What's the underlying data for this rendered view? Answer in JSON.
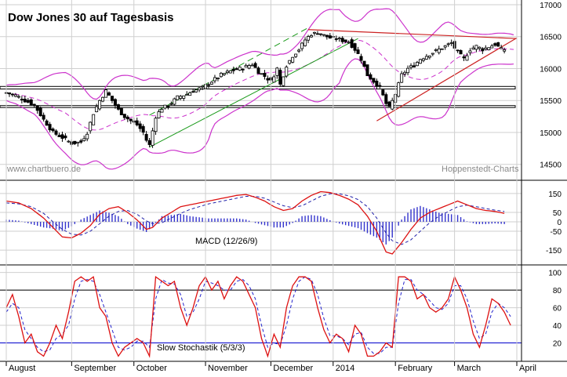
{
  "title": "Dow Jones 30 auf Tagesbasis",
  "watermark_left": "www.chartbuero.de",
  "watermark_right": "Hoppenstedt-Charts",
  "colors": {
    "candle": "#000000",
    "bollinger": "#cc33cc",
    "bollinger_mid": "#cc33cc",
    "channel_green": "#1a9a1a",
    "trend_red": "#cc2222",
    "support_box": "#000000",
    "macd_line": "#dd1111",
    "signal_line": "#2222aa",
    "histogram": "#3333cc",
    "stoch_k": "#dd1111",
    "stoch_d": "#2222cc",
    "stoch_upper": "#000000",
    "stoch_lower": "#0000cc",
    "grid": "#cfcfcf"
  },
  "chart_data": [
    {
      "type": "candlestick",
      "title": "Dow Jones 30 auf Tagesbasis",
      "y_ticks": [
        14500,
        15000,
        15500,
        16000,
        16500,
        17000
      ],
      "ylim": [
        14300,
        17000
      ],
      "grid": true,
      "x_labels": [
        "August",
        "September",
        "October",
        "November",
        "December",
        "2014",
        "February",
        "March",
        "April"
      ],
      "x_label_positions": [
        0,
        21,
        41,
        64,
        85,
        105,
        125,
        144,
        164
      ],
      "n_bars": 164,
      "close_anchors": [
        [
          0,
          15620
        ],
        [
          3,
          15580
        ],
        [
          6,
          15500
        ],
        [
          9,
          15430
        ],
        [
          12,
          15200
        ],
        [
          15,
          15000
        ],
        [
          18,
          14920
        ],
        [
          21,
          14830
        ],
        [
          24,
          14850
        ],
        [
          26,
          15000
        ],
        [
          28,
          15300
        ],
        [
          30,
          15500
        ],
        [
          32,
          15650
        ],
        [
          34,
          15500
        ],
        [
          36,
          15350
        ],
        [
          38,
          15250
        ],
        [
          40,
          15180
        ],
        [
          42,
          15120
        ],
        [
          44,
          15000
        ],
        [
          45,
          14880
        ],
        [
          46,
          14800
        ],
        [
          48,
          15250
        ],
        [
          50,
          15380
        ],
        [
          52,
          15420
        ],
        [
          55,
          15550
        ],
        [
          58,
          15600
        ],
        [
          60,
          15650
        ],
        [
          63,
          15700
        ],
        [
          66,
          15800
        ],
        [
          69,
          15900
        ],
        [
          72,
          15960
        ],
        [
          75,
          16000
        ],
        [
          77,
          16030
        ],
        [
          79,
          16070
        ],
        [
          81,
          15950
        ],
        [
          83,
          15880
        ],
        [
          85,
          15800
        ],
        [
          87,
          16000
        ],
        [
          88,
          15750
        ],
        [
          90,
          16050
        ],
        [
          92,
          16200
        ],
        [
          94,
          16300
        ],
        [
          96,
          16450
        ],
        [
          98,
          16540
        ],
        [
          100,
          16560
        ],
        [
          102,
          16520
        ],
        [
          104,
          16480
        ],
        [
          106,
          16470
        ],
        [
          108,
          16440
        ],
        [
          110,
          16420
        ],
        [
          112,
          16300
        ],
        [
          114,
          16150
        ],
        [
          116,
          15900
        ],
        [
          118,
          15800
        ],
        [
          120,
          15700
        ],
        [
          122,
          15450
        ],
        [
          123,
          15380
        ],
        [
          125,
          15600
        ],
        [
          127,
          15900
        ],
        [
          129,
          16000
        ],
        [
          131,
          16050
        ],
        [
          133,
          16150
        ],
        [
          135,
          16200
        ],
        [
          137,
          16250
        ],
        [
          139,
          16300
        ],
        [
          141,
          16350
        ],
        [
          143,
          16400
        ],
        [
          145,
          16250
        ],
        [
          147,
          16150
        ],
        [
          149,
          16300
        ],
        [
          151,
          16350
        ],
        [
          153,
          16300
        ],
        [
          155,
          16340
        ],
        [
          157,
          16380
        ],
        [
          159,
          16300
        ]
      ],
      "support_zone": [
        15680,
        15720
      ],
      "support_zone2": [
        15390,
        15420
      ],
      "channel": {
        "lower_from": [
          46,
          14770
        ],
        "lower_to": [
          113,
          16470
        ],
        "upper_from": [
          46,
          15270
        ],
        "upper_to": [
          97,
          16640
        ]
      },
      "resistance": {
        "from": [
          97,
          16610
        ],
        "to": [
          164,
          16470
        ]
      },
      "support_line": {
        "from": [
          119,
          15180
        ],
        "to": [
          164,
          16480
        ]
      }
    },
    {
      "type": "line",
      "name": "MACD (12/26/9)",
      "y_ticks": [
        150,
        50,
        0,
        -50,
        -150
      ],
      "ylim": [
        -220,
        220
      ],
      "macd_anchors": [
        [
          0,
          110
        ],
        [
          4,
          100
        ],
        [
          8,
          70
        ],
        [
          12,
          20
        ],
        [
          15,
          -30
        ],
        [
          18,
          -80
        ],
        [
          21,
          -85
        ],
        [
          24,
          -60
        ],
        [
          27,
          -20
        ],
        [
          30,
          40
        ],
        [
          33,
          70
        ],
        [
          36,
          80
        ],
        [
          39,
          50
        ],
        [
          42,
          10
        ],
        [
          45,
          -40
        ],
        [
          47,
          -30
        ],
        [
          50,
          20
        ],
        [
          53,
          50
        ],
        [
          56,
          80
        ],
        [
          59,
          90
        ],
        [
          62,
          100
        ],
        [
          65,
          110
        ],
        [
          68,
          120
        ],
        [
          71,
          130
        ],
        [
          74,
          140
        ],
        [
          77,
          145
        ],
        [
          80,
          130
        ],
        [
          83,
          110
        ],
        [
          86,
          80
        ],
        [
          89,
          60
        ],
        [
          92,
          70
        ],
        [
          95,
          110
        ],
        [
          98,
          140
        ],
        [
          101,
          160
        ],
        [
          104,
          155
        ],
        [
          107,
          140
        ],
        [
          110,
          120
        ],
        [
          113,
          90
        ],
        [
          116,
          30
        ],
        [
          119,
          -50
        ],
        [
          122,
          -160
        ],
        [
          124,
          -170
        ],
        [
          127,
          -110
        ],
        [
          130,
          -40
        ],
        [
          133,
          20
        ],
        [
          136,
          50
        ],
        [
          139,
          70
        ],
        [
          142,
          90
        ],
        [
          145,
          110
        ],
        [
          148,
          90
        ],
        [
          151,
          70
        ],
        [
          154,
          60
        ],
        [
          157,
          55
        ],
        [
          160,
          45
        ]
      ],
      "signal_anchors": [
        [
          0,
          100
        ],
        [
          4,
          95
        ],
        [
          8,
          80
        ],
        [
          12,
          45
        ],
        [
          15,
          0
        ],
        [
          18,
          -40
        ],
        [
          21,
          -65
        ],
        [
          24,
          -70
        ],
        [
          27,
          -50
        ],
        [
          30,
          -10
        ],
        [
          33,
          30
        ],
        [
          36,
          55
        ],
        [
          39,
          60
        ],
        [
          42,
          40
        ],
        [
          45,
          5
        ],
        [
          47,
          -10
        ],
        [
          50,
          -5
        ],
        [
          53,
          20
        ],
        [
          56,
          45
        ],
        [
          59,
          65
        ],
        [
          62,
          80
        ],
        [
          65,
          95
        ],
        [
          68,
          105
        ],
        [
          71,
          115
        ],
        [
          74,
          125
        ],
        [
          77,
          135
        ],
        [
          80,
          135
        ],
        [
          83,
          125
        ],
        [
          86,
          105
        ],
        [
          89,
          85
        ],
        [
          92,
          75
        ],
        [
          95,
          85
        ],
        [
          98,
          110
        ],
        [
          101,
          135
        ],
        [
          104,
          148
        ],
        [
          107,
          148
        ],
        [
          110,
          138
        ],
        [
          113,
          118
        ],
        [
          116,
          80
        ],
        [
          119,
          20
        ],
        [
          122,
          -60
        ],
        [
          124,
          -100
        ],
        [
          127,
          -120
        ],
        [
          130,
          -95
        ],
        [
          133,
          -50
        ],
        [
          136,
          -5
        ],
        [
          139,
          30
        ],
        [
          142,
          55
        ],
        [
          145,
          80
        ],
        [
          148,
          88
        ],
        [
          151,
          80
        ],
        [
          154,
          70
        ],
        [
          157,
          62
        ],
        [
          160,
          55
        ]
      ]
    },
    {
      "type": "line",
      "name": "Slow Stochastik (5/3/3)",
      "y_ticks": [
        100,
        80,
        60,
        40,
        20
      ],
      "ylim": [
        0,
        105
      ],
      "upper_level": 80,
      "lower_level": 20,
      "k_anchors": [
        [
          0,
          60
        ],
        [
          2,
          75
        ],
        [
          4,
          50
        ],
        [
          6,
          20
        ],
        [
          8,
          30
        ],
        [
          10,
          10
        ],
        [
          12,
          5
        ],
        [
          14,
          20
        ],
        [
          16,
          40
        ],
        [
          18,
          25
        ],
        [
          20,
          55
        ],
        [
          22,
          90
        ],
        [
          24,
          95
        ],
        [
          26,
          90
        ],
        [
          28,
          95
        ],
        [
          30,
          60
        ],
        [
          32,
          50
        ],
        [
          34,
          20
        ],
        [
          36,
          5
        ],
        [
          38,
          15
        ],
        [
          40,
          20
        ],
        [
          42,
          25
        ],
        [
          44,
          20
        ],
        [
          46,
          5
        ],
        [
          48,
          95
        ],
        [
          50,
          90
        ],
        [
          52,
          85
        ],
        [
          54,
          90
        ],
        [
          56,
          60
        ],
        [
          58,
          40
        ],
        [
          60,
          60
        ],
        [
          62,
          85
        ],
        [
          64,
          95
        ],
        [
          66,
          80
        ],
        [
          68,
          90
        ],
        [
          70,
          70
        ],
        [
          72,
          85
        ],
        [
          74,
          95
        ],
        [
          76,
          90
        ],
        [
          78,
          75
        ],
        [
          80,
          60
        ],
        [
          82,
          25
        ],
        [
          84,
          5
        ],
        [
          86,
          30
        ],
        [
          88,
          15
        ],
        [
          90,
          60
        ],
        [
          92,
          85
        ],
        [
          94,
          95
        ],
        [
          96,
          95
        ],
        [
          98,
          90
        ],
        [
          100,
          60
        ],
        [
          102,
          35
        ],
        [
          104,
          20
        ],
        [
          106,
          30
        ],
        [
          108,
          25
        ],
        [
          110,
          10
        ],
        [
          112,
          40
        ],
        [
          114,
          30
        ],
        [
          116,
          5
        ],
        [
          118,
          5
        ],
        [
          120,
          10
        ],
        [
          122,
          20
        ],
        [
          124,
          15
        ],
        [
          126,
          95
        ],
        [
          128,
          95
        ],
        [
          130,
          90
        ],
        [
          132,
          70
        ],
        [
          134,
          75
        ],
        [
          136,
          60
        ],
        [
          138,
          55
        ],
        [
          140,
          60
        ],
        [
          142,
          70
        ],
        [
          144,
          95
        ],
        [
          146,
          80
        ],
        [
          148,
          60
        ],
        [
          150,
          30
        ],
        [
          152,
          15
        ],
        [
          154,
          40
        ],
        [
          156,
          70
        ],
        [
          158,
          65
        ],
        [
          160,
          55
        ],
        [
          162,
          40
        ]
      ],
      "d_anchors": [
        [
          0,
          55
        ],
        [
          2,
          65
        ],
        [
          4,
          60
        ],
        [
          6,
          35
        ],
        [
          8,
          25
        ],
        [
          10,
          15
        ],
        [
          12,
          10
        ],
        [
          14,
          12
        ],
        [
          16,
          25
        ],
        [
          18,
          30
        ],
        [
          20,
          40
        ],
        [
          22,
          70
        ],
        [
          24,
          90
        ],
        [
          26,
          92
        ],
        [
          28,
          90
        ],
        [
          30,
          75
        ],
        [
          32,
          55
        ],
        [
          34,
          35
        ],
        [
          36,
          15
        ],
        [
          38,
          12
        ],
        [
          40,
          15
        ],
        [
          42,
          22
        ],
        [
          44,
          22
        ],
        [
          46,
          15
        ],
        [
          48,
          70
        ],
        [
          50,
          92
        ],
        [
          52,
          88
        ],
        [
          54,
          87
        ],
        [
          56,
          75
        ],
        [
          58,
          50
        ],
        [
          60,
          55
        ],
        [
          62,
          70
        ],
        [
          64,
          90
        ],
        [
          66,
          88
        ],
        [
          68,
          85
        ],
        [
          70,
          80
        ],
        [
          72,
          80
        ],
        [
          74,
          90
        ],
        [
          76,
          92
        ],
        [
          78,
          85
        ],
        [
          80,
          70
        ],
        [
          82,
          40
        ],
        [
          84,
          15
        ],
        [
          86,
          20
        ],
        [
          88,
          18
        ],
        [
          90,
          40
        ],
        [
          92,
          70
        ],
        [
          94,
          90
        ],
        [
          96,
          95
        ],
        [
          98,
          92
        ],
        [
          100,
          75
        ],
        [
          102,
          48
        ],
        [
          104,
          28
        ],
        [
          106,
          28
        ],
        [
          108,
          25
        ],
        [
          110,
          18
        ],
        [
          112,
          30
        ],
        [
          114,
          32
        ],
        [
          116,
          15
        ],
        [
          118,
          8
        ],
        [
          120,
          8
        ],
        [
          122,
          15
        ],
        [
          124,
          15
        ],
        [
          126,
          65
        ],
        [
          128,
          92
        ],
        [
          130,
          92
        ],
        [
          132,
          80
        ],
        [
          134,
          75
        ],
        [
          136,
          68
        ],
        [
          138,
          60
        ],
        [
          140,
          58
        ],
        [
          142,
          65
        ],
        [
          144,
          85
        ],
        [
          146,
          85
        ],
        [
          148,
          70
        ],
        [
          150,
          45
        ],
        [
          152,
          25
        ],
        [
          154,
          30
        ],
        [
          156,
          55
        ],
        [
          158,
          65
        ],
        [
          160,
          60
        ],
        [
          162,
          50
        ]
      ]
    }
  ]
}
